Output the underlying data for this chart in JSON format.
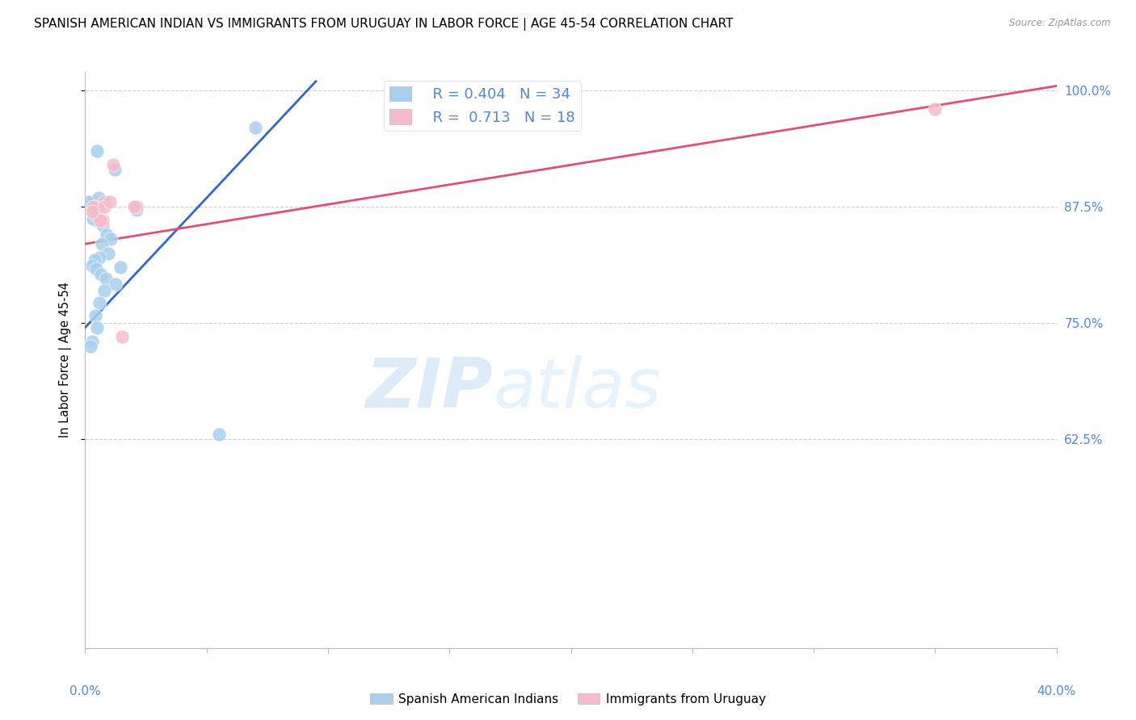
{
  "title": "SPANISH AMERICAN INDIAN VS IMMIGRANTS FROM URUGUAY IN LABOR FORCE | AGE 45-54 CORRELATION CHART",
  "source": "Source: ZipAtlas.com",
  "ylabel": "In Labor Force | Age 45-54",
  "yticks": [
    100.0,
    87.5,
    75.0,
    62.5
  ],
  "ytick_labels": [
    "100.0%",
    "87.5%",
    "75.0%",
    "62.5%"
  ],
  "xmin": 0.0,
  "xmax": 40.0,
  "ymin": 40.0,
  "ymax": 102.0,
  "blue_color": "#A8CFEE",
  "pink_color": "#F5BCCA",
  "blue_line_color": "#3366CC",
  "pink_line_color": "#E05070",
  "legend_blue_r": "R = 0.404",
  "legend_blue_n": "N = 34",
  "legend_pink_r": "R =  0.713",
  "legend_pink_n": "N = 18",
  "watermark_zip": "ZIP",
  "watermark_atlas": "atlas",
  "blue_scatter_x": [
    1.2,
    0.5,
    2.05,
    2.1,
    0.35,
    0.42,
    0.55,
    0.48,
    0.72,
    0.9,
    1.05,
    0.68,
    0.95,
    0.6,
    0.38,
    0.3,
    0.45,
    0.65,
    0.85,
    1.25,
    1.45,
    0.78,
    0.58,
    0.42,
    0.5,
    0.3,
    0.22,
    5.5,
    7.0,
    0.38,
    0.55,
    0.48,
    0.32,
    0.12
  ],
  "blue_scatter_y": [
    91.5,
    93.5,
    87.5,
    87.2,
    87.6,
    87.3,
    86.5,
    86.0,
    85.5,
    84.5,
    84.0,
    83.5,
    82.5,
    82.0,
    81.8,
    81.2,
    80.8,
    80.2,
    79.8,
    79.2,
    81.0,
    78.5,
    77.2,
    75.8,
    74.5,
    73.0,
    72.5,
    63.0,
    96.0,
    88.0,
    88.5,
    87.0,
    86.2,
    88.0
  ],
  "pink_scatter_x": [
    2.1,
    2.02,
    0.38,
    0.48,
    0.6,
    0.72,
    0.5,
    0.8,
    1.15,
    1.5,
    0.38,
    0.32,
    35.0,
    0.5,
    0.62,
    0.8,
    1.0,
    0.3
  ],
  "pink_scatter_y": [
    87.5,
    87.5,
    87.0,
    87.0,
    86.5,
    86.0,
    87.5,
    88.0,
    92.0,
    73.5,
    87.5,
    87.5,
    98.0,
    86.5,
    86.0,
    87.5,
    88.0,
    87.0
  ],
  "blue_trend_x": [
    0.0,
    9.5
  ],
  "blue_trend_y": [
    74.5,
    101.0
  ],
  "pink_trend_x": [
    0.0,
    40.0
  ],
  "pink_trend_y": [
    83.5,
    100.5
  ],
  "title_fontsize": 11,
  "axis_label_color": "#5588CC",
  "grid_color": "#CCCCCC",
  "xtick_positions": [
    0,
    5,
    10,
    15,
    20,
    25,
    30,
    35,
    40
  ]
}
